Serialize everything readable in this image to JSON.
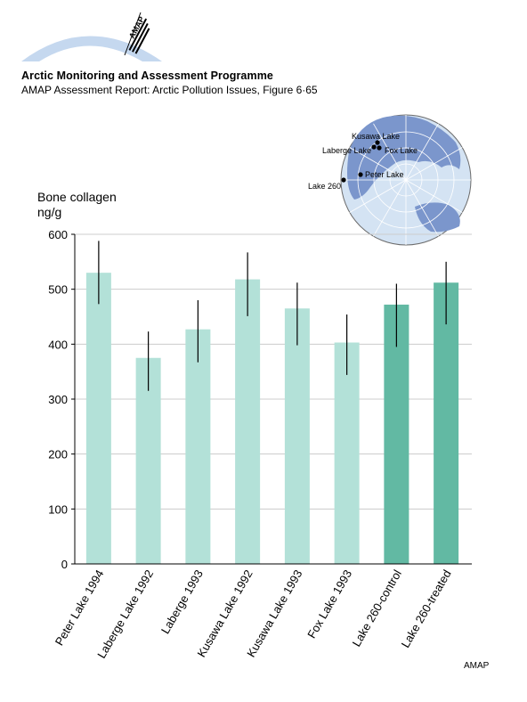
{
  "header": {
    "logo_text": "AMAP",
    "title": "Arctic Monitoring and Assessment Programme",
    "subtitle": "AMAP Assessment Report: Arctic Pollution Issues, Figure 6·65"
  },
  "colors": {
    "bar_light": "#b3e1d8",
    "bar_dark": "#62b9a3",
    "globe_land": "#7b96cc",
    "globe_ocean": "#d4e3f3",
    "grid": "#cccccc"
  },
  "map": {
    "labels": [
      "Kusawa Lake",
      "Laberge Lake",
      "Fox Lake",
      "Peter Lake",
      "Lake 260"
    ]
  },
  "chart_data": {
    "type": "bar",
    "ylabel_line1": "Bone collagen",
    "ylabel_line2": "ng/g",
    "ylim": [
      0,
      600
    ],
    "yticks": [
      0,
      100,
      200,
      300,
      400,
      500,
      600
    ],
    "grid": true,
    "categories": [
      "Peter Lake 1994",
      "Laberge Lake 1992",
      "Laberge 1993",
      "Kusawa Lake 1992",
      "Kusawa Lake 1993",
      "Fox Lake 1993",
      "Lake 260-control",
      "Lake 260-treated"
    ],
    "values": [
      530,
      375,
      427,
      518,
      465,
      403,
      472,
      512
    ],
    "error_low": [
      473,
      315,
      367,
      451,
      398,
      344,
      395,
      436
    ],
    "error_high": [
      588,
      423,
      480,
      567,
      512,
      454,
      510,
      550
    ],
    "bar_color_group": [
      "light",
      "light",
      "light",
      "light",
      "light",
      "light",
      "dark",
      "dark"
    ]
  },
  "credit": "AMAP"
}
